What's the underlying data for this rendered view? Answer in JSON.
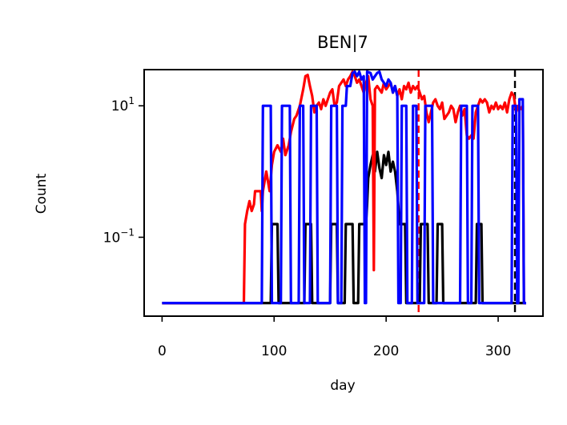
{
  "chart_data": {
    "type": "line",
    "title": "BEN|7",
    "xlabel": "day",
    "ylabel": "Count",
    "xlim": [
      -16,
      340
    ],
    "ylim_log10": [
      -2.2,
      1.55
    ],
    "yscale": "log",
    "xticks": [
      0,
      100,
      200,
      300
    ],
    "yticks": [
      {
        "exp": 1,
        "base": "10",
        "sup": "1"
      },
      {
        "exp": -1,
        "base": "10",
        "sup": "−1"
      }
    ],
    "floor_log10": -2.0,
    "vlines": [
      {
        "x": 229,
        "color": "#ff0000",
        "style": "dashed"
      },
      {
        "x": 315,
        "color": "#000000",
        "style": "dashed"
      }
    ],
    "series": [
      {
        "color": "#000000",
        "points": [
          [
            0,
            -2.0
          ],
          [
            97,
            -2.0
          ],
          [
            98,
            -0.8
          ],
          [
            103,
            -0.8
          ],
          [
            104,
            -2.0
          ],
          [
            127,
            -2.0
          ],
          [
            128,
            -0.8
          ],
          [
            133,
            -0.8
          ],
          [
            134,
            -2.0
          ],
          [
            150,
            -2.0
          ],
          [
            151,
            -0.8
          ],
          [
            156,
            -0.8
          ],
          [
            157,
            -2.0
          ],
          [
            163,
            -2.0
          ],
          [
            164,
            -0.8
          ],
          [
            170,
            -0.8
          ],
          [
            171,
            -2.0
          ],
          [
            175,
            -2.0
          ],
          [
            176,
            -0.8
          ],
          [
            182,
            -0.8
          ],
          [
            183,
            -0.5
          ],
          [
            184,
            -0.1
          ],
          [
            186,
            0.1
          ],
          [
            188,
            0.25
          ],
          [
            190,
            0.0
          ],
          [
            192,
            0.3
          ],
          [
            194,
            0.05
          ],
          [
            196,
            -0.1
          ],
          [
            198,
            0.25
          ],
          [
            200,
            0.1
          ],
          [
            202,
            0.3
          ],
          [
            204,
            0.0
          ],
          [
            206,
            0.15
          ],
          [
            208,
            0.0
          ],
          [
            210,
            -0.3
          ],
          [
            212,
            -0.8
          ],
          [
            217,
            -0.8
          ],
          [
            218,
            -2.0
          ],
          [
            230,
            -2.0
          ],
          [
            231,
            -0.8
          ],
          [
            237,
            -0.8
          ],
          [
            238,
            -2.0
          ],
          [
            245,
            -2.0
          ],
          [
            246,
            -0.8
          ],
          [
            250,
            -0.8
          ],
          [
            251,
            -2.0
          ],
          [
            280,
            -2.0
          ],
          [
            281,
            -0.8
          ],
          [
            285,
            -0.8
          ],
          [
            286,
            -2.0
          ],
          [
            325,
            -2.0
          ]
        ]
      },
      {
        "color": "#ff0000",
        "points": [
          [
            0,
            -2.0
          ],
          [
            73,
            -2.0
          ],
          [
            74,
            -0.8
          ],
          [
            76,
            -0.6
          ],
          [
            78,
            -0.45
          ],
          [
            80,
            -0.6
          ],
          [
            82,
            -0.5
          ],
          [
            83,
            -0.3
          ],
          [
            86,
            -0.3
          ],
          [
            88,
            -0.3
          ],
          [
            89,
            -0.6
          ],
          [
            90,
            -0.3
          ],
          [
            93,
            0.0
          ],
          [
            96,
            -0.3
          ],
          [
            98,
            0.1
          ],
          [
            100,
            0.3
          ],
          [
            103,
            0.4
          ],
          [
            106,
            0.3
          ],
          [
            108,
            0.5
          ],
          [
            110,
            0.25
          ],
          [
            113,
            0.4
          ],
          [
            115,
            0.6
          ],
          [
            118,
            0.8
          ],
          [
            120,
            0.85
          ],
          [
            123,
            1.0
          ],
          [
            126,
            1.25
          ],
          [
            128,
            1.45
          ],
          [
            130,
            1.47
          ],
          [
            132,
            1.3
          ],
          [
            134,
            1.15
          ],
          [
            136,
            0.9
          ],
          [
            138,
            1.0
          ],
          [
            140,
            1.05
          ],
          [
            142,
            0.95
          ],
          [
            144,
            1.1
          ],
          [
            146,
            1.0
          ],
          [
            148,
            1.1
          ],
          [
            150,
            1.2
          ],
          [
            152,
            1.25
          ],
          [
            154,
            1.0
          ],
          [
            156,
            1.05
          ],
          [
            158,
            1.3
          ],
          [
            160,
            1.35
          ],
          [
            162,
            1.4
          ],
          [
            164,
            1.3
          ],
          [
            166,
            1.4
          ],
          [
            168,
            1.45
          ],
          [
            170,
            1.52
          ],
          [
            172,
            1.45
          ],
          [
            174,
            1.35
          ],
          [
            176,
            1.4
          ],
          [
            178,
            1.3
          ],
          [
            180,
            1.2
          ],
          [
            182,
            1.35
          ],
          [
            184,
            1.45
          ],
          [
            186,
            1.1
          ],
          [
            188,
            1.0
          ],
          [
            189,
            -1.5
          ],
          [
            190,
            1.25
          ],
          [
            192,
            1.3
          ],
          [
            194,
            1.25
          ],
          [
            196,
            1.2
          ],
          [
            198,
            1.35
          ],
          [
            200,
            1.25
          ],
          [
            202,
            1.3
          ],
          [
            204,
            1.35
          ],
          [
            206,
            1.2
          ],
          [
            208,
            1.3
          ],
          [
            210,
            1.15
          ],
          [
            212,
            1.25
          ],
          [
            214,
            1.1
          ],
          [
            216,
            1.3
          ],
          [
            218,
            1.25
          ],
          [
            220,
            1.35
          ],
          [
            222,
            1.2
          ],
          [
            224,
            1.3
          ],
          [
            226,
            1.25
          ],
          [
            228,
            1.3
          ],
          [
            230,
            1.2
          ],
          [
            232,
            1.1
          ],
          [
            234,
            1.15
          ],
          [
            236,
            0.9
          ],
          [
            238,
            0.75
          ],
          [
            240,
            0.9
          ],
          [
            242,
            1.05
          ],
          [
            244,
            1.1
          ],
          [
            246,
            1.0
          ],
          [
            248,
            0.95
          ],
          [
            250,
            1.05
          ],
          [
            252,
            0.8
          ],
          [
            254,
            0.85
          ],
          [
            256,
            0.9
          ],
          [
            258,
            1.0
          ],
          [
            260,
            0.95
          ],
          [
            262,
            0.75
          ],
          [
            264,
            0.9
          ],
          [
            266,
            1.0
          ],
          [
            268,
            0.85
          ],
          [
            270,
            0.95
          ],
          [
            272,
            0.55
          ],
          [
            274,
            0.5
          ],
          [
            276,
            0.55
          ],
          [
            278,
            0.5
          ],
          [
            280,
            0.9
          ],
          [
            282,
            1.0
          ],
          [
            284,
            1.1
          ],
          [
            286,
            1.05
          ],
          [
            288,
            1.1
          ],
          [
            290,
            1.05
          ],
          [
            292,
            0.9
          ],
          [
            294,
            1.0
          ],
          [
            296,
            0.95
          ],
          [
            298,
            1.05
          ],
          [
            300,
            0.95
          ],
          [
            302,
            1.0
          ],
          [
            304,
            0.95
          ],
          [
            306,
            1.05
          ],
          [
            308,
            0.9
          ],
          [
            310,
            1.1
          ],
          [
            312,
            1.2
          ],
          [
            314,
            1.15
          ],
          [
            316,
            0.9
          ],
          [
            318,
            1.0
          ],
          [
            320,
            0.95
          ],
          [
            322,
            1.0
          ],
          [
            323,
            -2.0
          ],
          [
            325,
            -2.0
          ]
        ]
      },
      {
        "color": "#0000ff",
        "points": [
          [
            0,
            -2.0
          ],
          [
            89,
            -2.0
          ],
          [
            90,
            1.0
          ],
          [
            97,
            1.0
          ],
          [
            98,
            -2.0
          ],
          [
            106,
            -2.0
          ],
          [
            107,
            1.0
          ],
          [
            114,
            1.0
          ],
          [
            115,
            -2.0
          ],
          [
            122,
            -2.0
          ],
          [
            123,
            1.0
          ],
          [
            126,
            1.0
          ],
          [
            127,
            -2.0
          ],
          [
            132,
            -2.0
          ],
          [
            133,
            1.0
          ],
          [
            138,
            1.0
          ],
          [
            139,
            -2.0
          ],
          [
            150,
            -2.0
          ],
          [
            151,
            1.0
          ],
          [
            156,
            1.0
          ],
          [
            157,
            -2.0
          ],
          [
            160,
            -2.0
          ],
          [
            161,
            1.0
          ],
          [
            164,
            1.0
          ],
          [
            165,
            1.3
          ],
          [
            168,
            1.3
          ],
          [
            170,
            1.5
          ],
          [
            172,
            1.52
          ],
          [
            174,
            1.45
          ],
          [
            176,
            1.52
          ],
          [
            178,
            1.4
          ],
          [
            180,
            1.45
          ],
          [
            181,
            -2.0
          ],
          [
            182,
            -2.0
          ],
          [
            183,
            1.52
          ],
          [
            186,
            1.5
          ],
          [
            188,
            1.4
          ],
          [
            190,
            1.45
          ],
          [
            192,
            1.5
          ],
          [
            194,
            1.52
          ],
          [
            196,
            1.4
          ],
          [
            198,
            1.35
          ],
          [
            200,
            1.3
          ],
          [
            202,
            1.4
          ],
          [
            204,
            1.35
          ],
          [
            206,
            1.2
          ],
          [
            208,
            1.3
          ],
          [
            210,
            1.15
          ],
          [
            211,
            -2.0
          ],
          [
            213,
            -2.0
          ],
          [
            214,
            1.0
          ],
          [
            218,
            1.0
          ],
          [
            219,
            -2.0
          ],
          [
            223,
            -2.0
          ],
          [
            224,
            1.0
          ],
          [
            227,
            1.0
          ],
          [
            228,
            -2.0
          ],
          [
            234,
            -2.0
          ],
          [
            235,
            1.0
          ],
          [
            241,
            1.0
          ],
          [
            242,
            -2.0
          ],
          [
            266,
            -2.0
          ],
          [
            267,
            1.0
          ],
          [
            272,
            1.0
          ],
          [
            273,
            -2.0
          ],
          [
            276,
            -2.0
          ],
          [
            277,
            1.0
          ],
          [
            282,
            1.0
          ],
          [
            283,
            -2.0
          ],
          [
            312,
            -2.0
          ],
          [
            313,
            1.0
          ],
          [
            316,
            1.0
          ],
          [
            317,
            -2.0
          ],
          [
            318,
            -2.0
          ],
          [
            319,
            1.1
          ],
          [
            322,
            1.1
          ],
          [
            323,
            -2.0
          ],
          [
            325,
            -2.0
          ]
        ]
      }
    ]
  }
}
